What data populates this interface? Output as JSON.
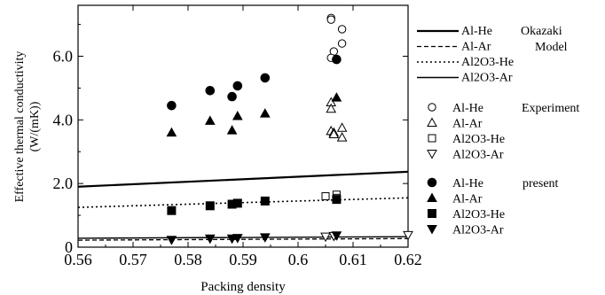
{
  "chart_data": {
    "type": "scatter",
    "xlabel": "Packing density",
    "ylabel_line1": "Effective thermal conductivity",
    "ylabel_line2": "(W/(mK))",
    "xlim": [
      0.56,
      0.62
    ],
    "ylim": [
      0,
      7.6
    ],
    "xticks": [
      "0.56",
      "0.57",
      "0.58",
      "0.59",
      "0.6",
      "0.61",
      "0.62"
    ],
    "xtick_values": [
      0.56,
      0.57,
      0.58,
      0.59,
      0.6,
      0.61,
      0.62
    ],
    "yticks": [
      "0",
      "2.0",
      "4.0",
      "6.0"
    ],
    "ytick_values": [
      0,
      2,
      4,
      6
    ],
    "grid": false,
    "legend_groups": [
      {
        "title": "Okazaki",
        "title_line2": "Model",
        "entries": [
          {
            "label": "Al-He",
            "style": "solid-thick"
          },
          {
            "label": "Al-Ar",
            "style": "dashed"
          },
          {
            "label": "Al2O3-He",
            "style": "dotted"
          },
          {
            "label": "Al2O3-Ar",
            "style": "solid-thin"
          }
        ]
      },
      {
        "title": "Experiment",
        "entries": [
          {
            "label": "Al-He",
            "marker": "circle-open"
          },
          {
            "label": "Al-Ar",
            "marker": "triangle-up-open"
          },
          {
            "label": "Al2O3-He",
            "marker": "square-open"
          },
          {
            "label": "Al2O3-Ar",
            "marker": "triangle-down-open"
          }
        ]
      },
      {
        "title": "present",
        "entries": [
          {
            "label": "Al-He",
            "marker": "circle-filled"
          },
          {
            "label": "Al-Ar",
            "marker": "triangle-up-filled"
          },
          {
            "label": "Al2O3-He",
            "marker": "square-filled"
          },
          {
            "label": "Al2O3-Ar",
            "marker": "triangle-down-filled"
          }
        ]
      }
    ],
    "model_lines": [
      {
        "name": "Al-He",
        "style": "solid-thick",
        "x": [
          0.56,
          0.62
        ],
        "y": [
          1.9,
          2.37
        ]
      },
      {
        "name": "Al-Ar",
        "style": "dashed",
        "x": [
          0.56,
          0.62
        ],
        "y": [
          0.22,
          0.27
        ]
      },
      {
        "name": "Al2O3-He",
        "style": "dotted",
        "x": [
          0.56,
          0.62
        ],
        "y": [
          1.25,
          1.55
        ]
      },
      {
        "name": "Al2O3-Ar",
        "style": "solid-thin",
        "x": [
          0.56,
          0.62
        ],
        "y": [
          0.28,
          0.33
        ]
      }
    ],
    "experiment": [
      {
        "name": "Al-He",
        "marker": "circle-open",
        "points": [
          [
            0.606,
            7.2
          ],
          [
            0.606,
            7.15
          ],
          [
            0.608,
            6.85
          ],
          [
            0.6065,
            6.15
          ],
          [
            0.608,
            6.4
          ],
          [
            0.606,
            5.95
          ]
        ]
      },
      {
        "name": "Al-Ar",
        "marker": "triangle-up-open",
        "points": [
          [
            0.606,
            4.55
          ],
          [
            0.606,
            4.35
          ],
          [
            0.606,
            3.65
          ],
          [
            0.6065,
            3.6
          ],
          [
            0.608,
            3.75
          ],
          [
            0.6065,
            3.55
          ],
          [
            0.608,
            3.45
          ]
        ]
      },
      {
        "name": "Al2O3-He",
        "marker": "square-open",
        "points": [
          [
            0.605,
            1.6
          ],
          [
            0.607,
            1.65
          ],
          [
            0.607,
            1.55
          ]
        ]
      },
      {
        "name": "Al2O3-Ar",
        "marker": "triangle-down-open",
        "points": [
          [
            0.605,
            0.33
          ],
          [
            0.6065,
            0.35
          ],
          [
            0.62,
            0.38
          ]
        ]
      }
    ],
    "present": [
      {
        "name": "Al-He",
        "marker": "circle-filled",
        "points": [
          [
            0.577,
            4.45
          ],
          [
            0.584,
            4.92
          ],
          [
            0.588,
            4.73
          ],
          [
            0.589,
            5.07
          ],
          [
            0.594,
            5.32
          ],
          [
            0.607,
            5.9
          ]
        ]
      },
      {
        "name": "Al-Ar",
        "marker": "triangle-up-filled",
        "points": [
          [
            0.577,
            3.6
          ],
          [
            0.584,
            3.97
          ],
          [
            0.588,
            3.67
          ],
          [
            0.589,
            4.12
          ],
          [
            0.594,
            4.2
          ],
          [
            0.607,
            4.7
          ]
        ]
      },
      {
        "name": "Al2O3-He",
        "marker": "square-filled",
        "points": [
          [
            0.577,
            1.15
          ],
          [
            0.584,
            1.3
          ],
          [
            0.588,
            1.35
          ],
          [
            0.589,
            1.38
          ],
          [
            0.594,
            1.45
          ],
          [
            0.607,
            1.5
          ]
        ]
      },
      {
        "name": "Al2O3-Ar",
        "marker": "triangle-down-filled",
        "points": [
          [
            0.577,
            0.23
          ],
          [
            0.584,
            0.27
          ],
          [
            0.588,
            0.27
          ],
          [
            0.589,
            0.29
          ],
          [
            0.594,
            0.31
          ],
          [
            0.607,
            0.37
          ]
        ]
      }
    ]
  }
}
